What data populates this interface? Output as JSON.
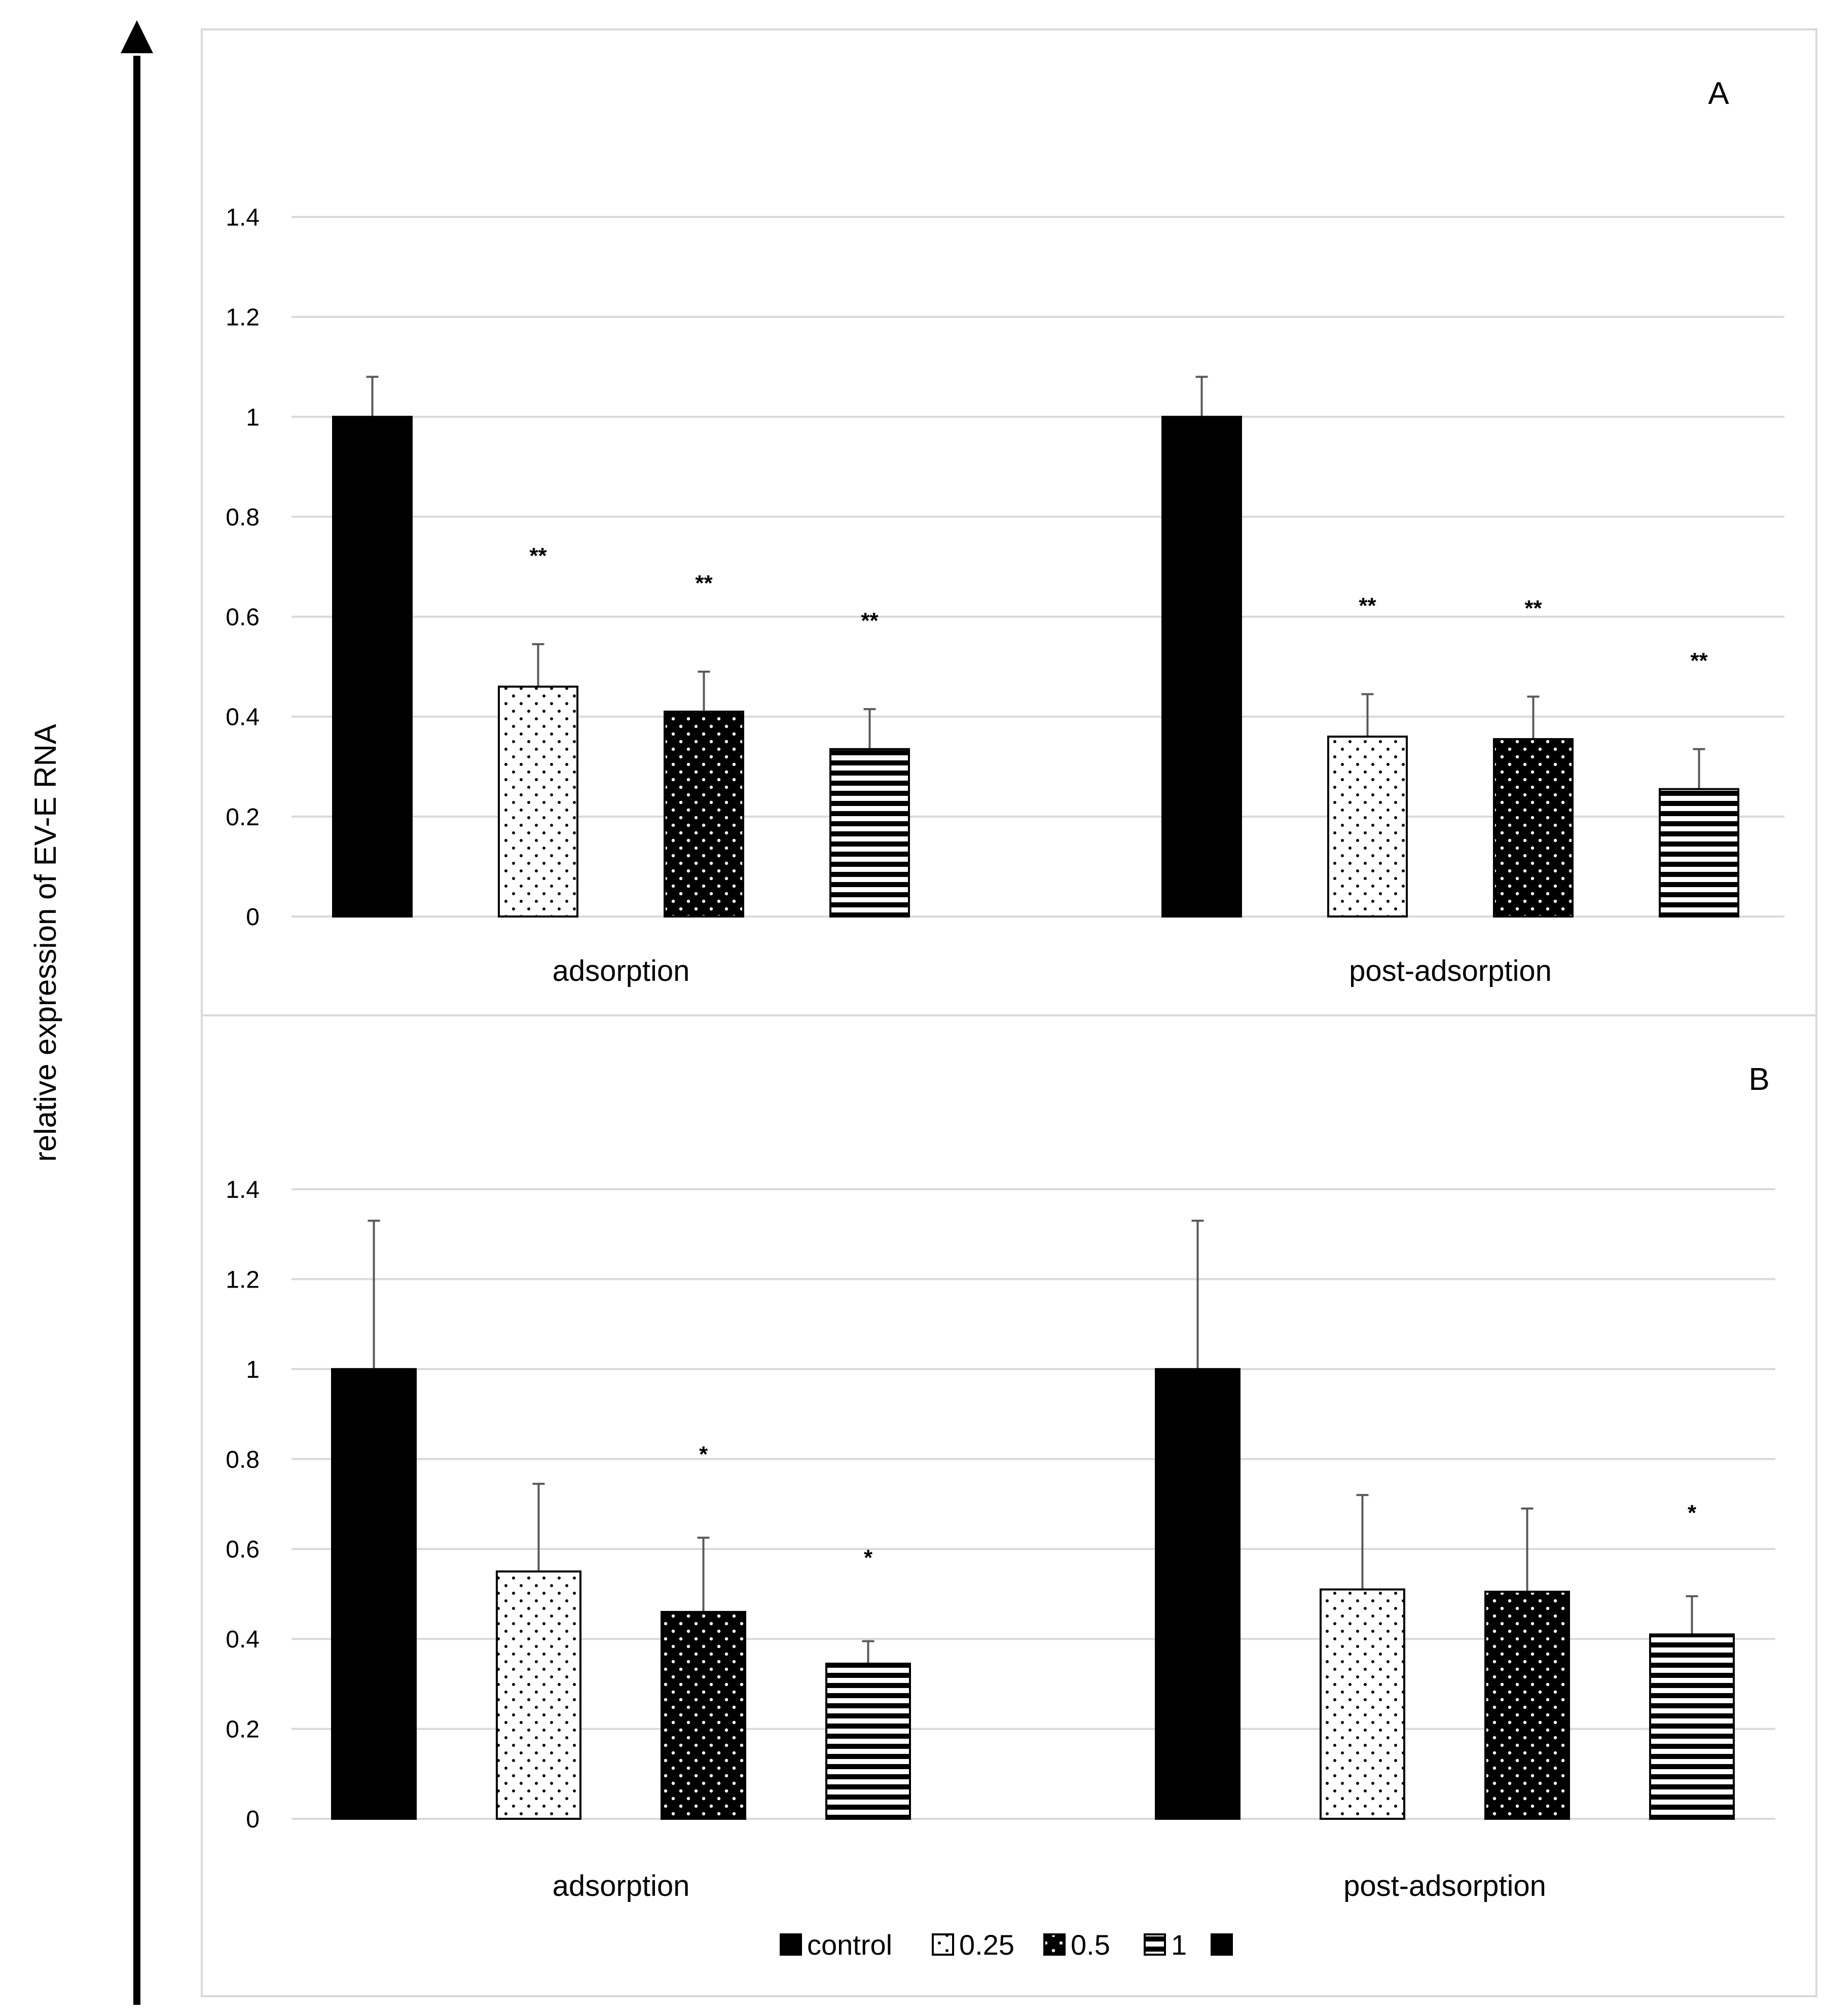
{
  "y_axis_label": "relative expression of EV-E RNA",
  "legend_items": [
    {
      "label": "control",
      "pattern": "solid"
    },
    {
      "label": "0.25",
      "pattern": "sparse-dots"
    },
    {
      "label": "0.5",
      "pattern": "dense-dots"
    },
    {
      "label": "1",
      "pattern": "horizontal-stripes"
    },
    {
      "label": "",
      "pattern": "solid"
    }
  ],
  "colors": {
    "bar_fill": "#000000",
    "grid": "#d9d9d9",
    "error_bar": "#595959",
    "frame": "#d9d9d9"
  },
  "chart_data": [
    {
      "type": "bar",
      "panel_label": "A",
      "categories": [
        "adsorption",
        "post-adsorption"
      ],
      "ylim": [
        0,
        1.4
      ],
      "ytick_labels": [
        "0",
        "0.2",
        "0.4",
        "0.6",
        "0.8",
        "1",
        "1.2",
        "1.4"
      ],
      "series": [
        {
          "name": "control",
          "values": [
            1.0,
            1.0
          ],
          "errors": [
            0.08,
            0.08
          ],
          "significance": [
            "",
            ""
          ]
        },
        {
          "name": "0.25",
          "values": [
            0.46,
            0.36
          ],
          "errors": [
            0.085,
            0.085
          ],
          "significance": [
            "**",
            "**"
          ]
        },
        {
          "name": "0.5",
          "values": [
            0.41,
            0.355
          ],
          "errors": [
            0.08,
            0.085
          ],
          "significance": [
            "**",
            "**"
          ]
        },
        {
          "name": "1",
          "values": [
            0.335,
            0.255
          ],
          "errors": [
            0.08,
            0.08
          ],
          "significance": [
            "**",
            "**"
          ]
        }
      ]
    },
    {
      "type": "bar",
      "panel_label": "B",
      "categories": [
        "adsorption",
        "post-adsorption"
      ],
      "ylim": [
        0,
        1.4
      ],
      "ytick_labels": [
        "0",
        "0.2",
        "0.4",
        "0.6",
        "0.8",
        "1",
        "1.2",
        "1.4"
      ],
      "series": [
        {
          "name": "control",
          "values": [
            1.0,
            1.0
          ],
          "errors": [
            0.33,
            0.33
          ],
          "significance": [
            "",
            ""
          ]
        },
        {
          "name": "0.25",
          "values": [
            0.55,
            0.51
          ],
          "errors": [
            0.195,
            0.21
          ],
          "significance": [
            "",
            ""
          ]
        },
        {
          "name": "0.5",
          "values": [
            0.46,
            0.505
          ],
          "errors": [
            0.165,
            0.185
          ],
          "significance": [
            "*",
            ""
          ]
        },
        {
          "name": "1",
          "values": [
            0.345,
            0.41
          ],
          "errors": [
            0.05,
            0.085
          ],
          "significance": [
            "*",
            "*"
          ]
        }
      ]
    }
  ]
}
